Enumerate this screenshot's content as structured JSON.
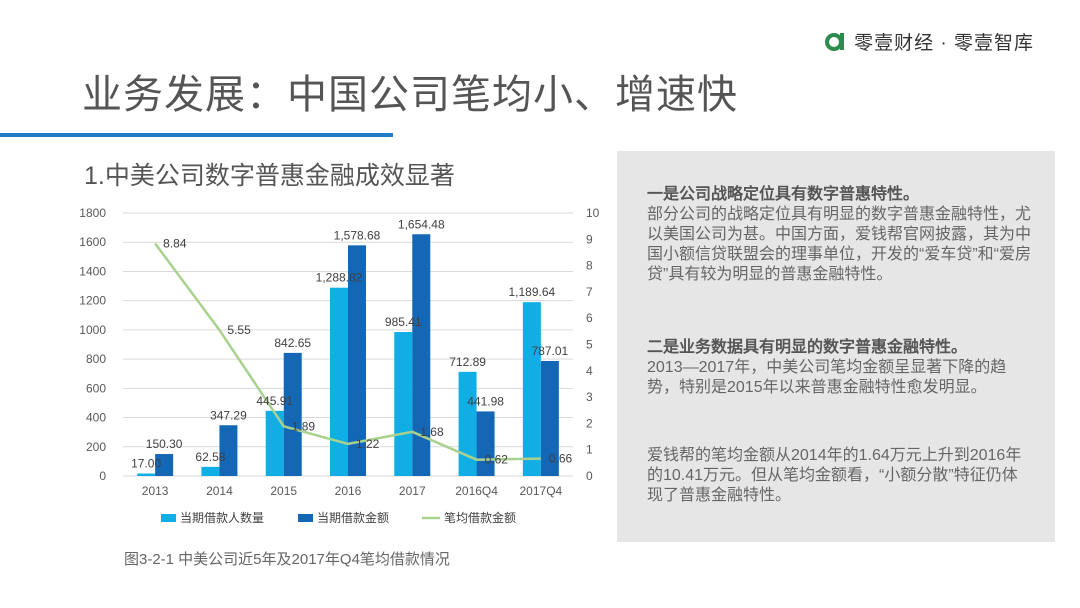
{
  "brand": {
    "name": "零壹财经 · 零壹智库",
    "logo_color": "#2e8b4e"
  },
  "page_title": "业务发展：中国公司笔均小、增速快",
  "section_heading": "1.中美公司数字普惠金融成效显著",
  "figure_caption": "图3-2-1 中美公司近5年及2017年Q4笔均借款情况",
  "chart_data": {
    "type": "bar",
    "categories": [
      "2013",
      "2014",
      "2015",
      "2016",
      "2017",
      "2016Q4",
      "2017Q4"
    ],
    "series": [
      {
        "name": "当期借款人数量",
        "kind": "bar",
        "axis": "left",
        "color": "#11aee6",
        "values": [
          17.0,
          62.58,
          445.91,
          1288.82,
          985.41,
          712.89,
          1189.64
        ],
        "labels": [
          "17.00",
          "62.58",
          "445.91",
          "1,288.82",
          "985.41",
          "712.89",
          "1,189.64"
        ]
      },
      {
        "name": "当期借款金额",
        "kind": "bar",
        "axis": "left",
        "color": "#1467b5",
        "values": [
          150.3,
          347.29,
          842.65,
          1578.68,
          1654.48,
          441.98,
          787.01
        ],
        "labels": [
          "150.30",
          "347.29",
          "842.65",
          "1,578.68",
          "1,654.48",
          "441.98",
          "787.01"
        ]
      },
      {
        "name": "笔均借款金额",
        "kind": "line",
        "axis": "right",
        "color": "#a9d18e",
        "values": [
          8.84,
          5.55,
          1.89,
          1.22,
          1.68,
          0.62,
          0.66
        ],
        "labels": [
          "8.84",
          "5.55",
          "1.89",
          "1.22",
          "1.68",
          "0.62",
          "0.66"
        ]
      }
    ],
    "y_left": {
      "ylim": [
        0,
        1800
      ],
      "ticks": [
        "0",
        "200",
        "400",
        "600",
        "800",
        "1000",
        "1200",
        "1400",
        "1600",
        "1800"
      ]
    },
    "y_right": {
      "ylim": [
        0,
        10
      ],
      "ticks": [
        "0",
        "1",
        "2",
        "3",
        "4",
        "5",
        "6",
        "7",
        "8",
        "9",
        "10"
      ]
    },
    "grid": true,
    "legend_position": "bottom"
  },
  "panel": {
    "block1_heading": "一是公司战略定位具有数字普惠特性。",
    "block1_body": "部分公司的战略定位具有明显的数字普惠金融特性，尤以美国公司为甚。中国方面，爱钱帮官网披露，其为中国小额信贷联盟会的理事单位，开发的“爱车贷”和“爱房贷”具有较为明显的普惠金融特性。",
    "block2_heading": "二是业务数据具有明显的数字普惠金融特性。",
    "block2_body": "2013—2017年，中美公司笔均金额呈显著下降的趋势，特别是2015年以来普惠金融特性愈发明显。",
    "block3_body": "爱钱帮的笔均金额从2014年的1.64万元上升到2016年的10.41万元。但从笔均金额看，“小额分散”特征仍体现了普惠金融特性。"
  }
}
